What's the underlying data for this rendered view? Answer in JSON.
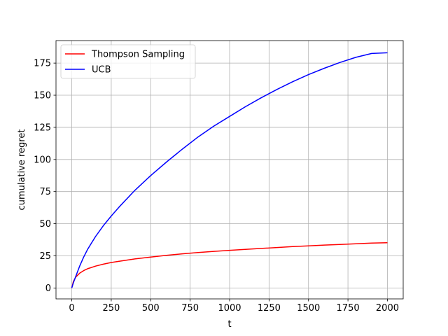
{
  "chart_data": {
    "type": "line",
    "title": "",
    "xlabel": "t",
    "ylabel": "cumulative regret",
    "xlim": [
      -100,
      2100
    ],
    "ylim": [
      -8.5,
      192.5
    ],
    "xticks": [
      0,
      250,
      500,
      750,
      1000,
      1250,
      1500,
      1750,
      2000
    ],
    "yticks": [
      0,
      25,
      50,
      75,
      100,
      125,
      150,
      175
    ],
    "grid": true,
    "legend_position": "top-left",
    "series": [
      {
        "name": "Thompson Sampling",
        "color": "#ff0000",
        "x": [
          0,
          10,
          25,
          50,
          75,
          100,
          150,
          200,
          250,
          300,
          400,
          500,
          600,
          700,
          800,
          900,
          1000,
          1100,
          1200,
          1300,
          1400,
          1500,
          1600,
          1700,
          1800,
          1900,
          2000
        ],
        "y": [
          0,
          5,
          8.5,
          11.5,
          13.5,
          15,
          17,
          18.5,
          19.8,
          20.8,
          22.6,
          24,
          25.4,
          26.6,
          27.6,
          28.5,
          29.3,
          30,
          30.8,
          31.5,
          32.2,
          32.8,
          33.4,
          33.9,
          34.4,
          34.9,
          35.2
        ]
      },
      {
        "name": "UCB",
        "color": "#0000ff",
        "x": [
          0,
          10,
          25,
          50,
          75,
          100,
          150,
          200,
          250,
          300,
          400,
          500,
          600,
          700,
          800,
          900,
          1000,
          1100,
          1200,
          1300,
          1400,
          1500,
          1600,
          1700,
          1800,
          1900,
          2000
        ],
        "y": [
          0,
          4,
          9,
          17,
          24,
          30,
          40,
          48.5,
          56,
          63,
          76,
          87.5,
          98,
          108,
          117.5,
          126,
          133.5,
          141,
          148,
          154.5,
          160.5,
          166,
          171,
          175.5,
          179.5,
          182.5,
          183
        ]
      }
    ]
  }
}
